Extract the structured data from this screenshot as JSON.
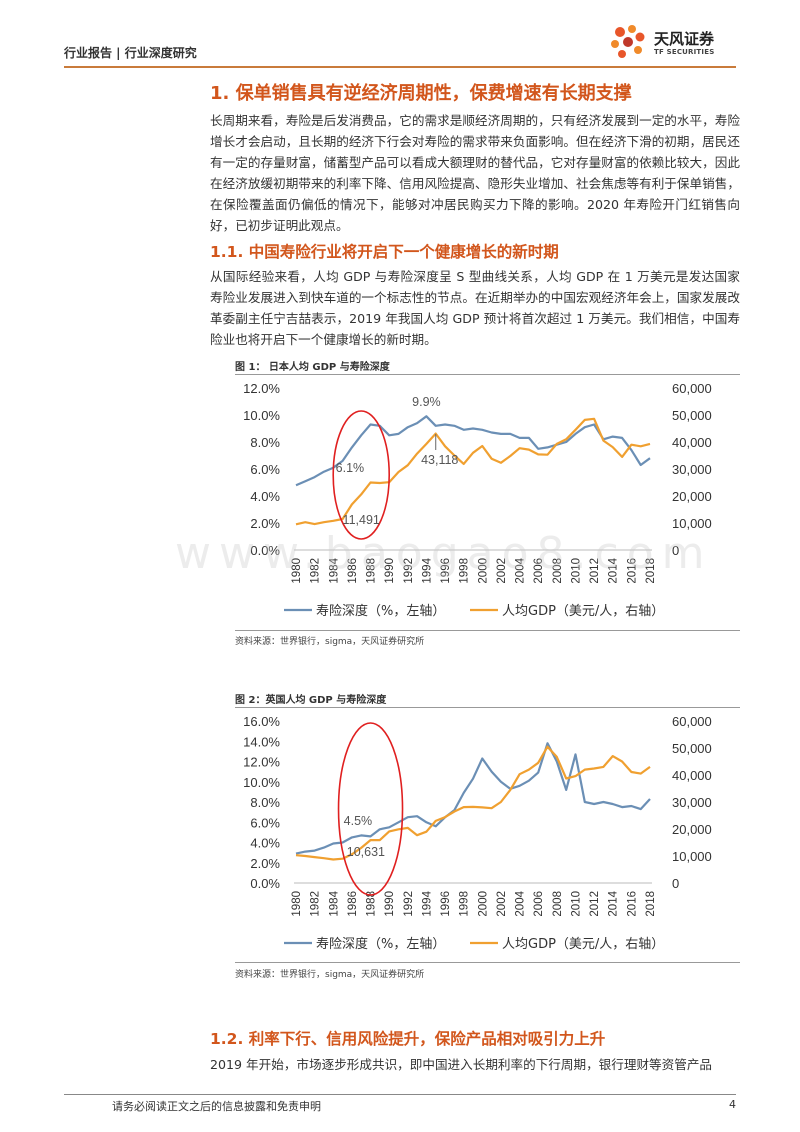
{
  "header": {
    "left_text": "行业报告 | 行业深度研究",
    "logo_name": "天风证券",
    "logo_sub": "TF SECURITIES"
  },
  "section1": {
    "title": "1. 保单销售具有逆经济周期性，保费增速有长期支撑",
    "para": "长周期来看，寿险是后发消费品，它的需求是顺经济周期的，只有经济发展到一定的水平，寿险增长才会启动，且长期的经济下行会对寿险的需求带来负面影响。但在经济下滑的初期，居民还有一定的存量财富，储蓄型产品可以看成大额理财的替代品，它对存量财富的依赖比较大，因此在经济放缓初期带来的利率下降、信用风险提高、隐形失业增加、社会焦虑等有利于保单销售，在保险覆盖面仍偏低的情况下，能够对冲居民购买力下降的影响。2020 年寿险开门红销售向好，已初步证明此观点。"
  },
  "section11": {
    "title": "1.1. 中国寿险行业将开启下一个健康增长的新时期",
    "para": "从国际经验来看，人均 GDP 与寿险深度呈 S 型曲线关系，人均 GDP 在 1 万美元是发达国家寿险业发展进入到快车道的一个标志性的节点。在近期举办的中国宏观经济年会上，国家发展改革委副主任宁吉喆表示，2019 年我国人均 GDP 预计将首次超过 1 万美元。我们相信，中国寿险业也将开启下一个健康增长的新时期。"
  },
  "figure1": {
    "title": "图 1： 日本人均 GDP 与寿险深度",
    "source": "资料来源：世界银行，sigma，天风证券研究所"
  },
  "figure2": {
    "title": "图 2：英国人均 GDP 与寿险深度",
    "source": "资料来源：世界银行，sigma，天风证券研究所"
  },
  "section12": {
    "title": "1.2. 利率下行、信用风险提升，保险产品相对吸引力上升",
    "para": "2019 年开始，市场逐步形成共识，即中国进入长期利率的下行周期，银行理财等资管产品"
  },
  "footer": {
    "disclaimer": "请务必阅读正文之后的信息披露和免责申明",
    "page": "4"
  },
  "colors": {
    "depth_line": "#6b8fb5",
    "gdp_line": "#f0a030",
    "highlight_circle": "#e02020",
    "heading": "#d2561c"
  },
  "chart_data": [
    {
      "type": "line",
      "x": [
        1980,
        1981,
        1982,
        1983,
        1984,
        1985,
        1986,
        1987,
        1988,
        1989,
        1990,
        1991,
        1992,
        1993,
        1994,
        1995,
        1996,
        1997,
        1998,
        1999,
        2000,
        2001,
        2002,
        2003,
        2004,
        2005,
        2006,
        2007,
        2008,
        2009,
        2010,
        2011,
        2012,
        2013,
        2014,
        2015,
        2016,
        2017,
        2018
      ],
      "x_tick_labels": [
        "1980",
        "1982",
        "1984",
        "1986",
        "1988",
        "1990",
        "1992",
        "1994",
        "1996",
        "1998",
        "2000",
        "2002",
        "2004",
        "2006",
        "2008",
        "2010",
        "2012",
        "2014",
        "2016",
        "2018"
      ],
      "y_left_ticks": [
        "0.0%",
        "2.0%",
        "4.0%",
        "6.0%",
        "8.0%",
        "10.0%",
        "12.0%"
      ],
      "y_right_ticks": [
        "0",
        "10,000",
        "20,000",
        "30,000",
        "40,000",
        "50,000",
        "60,000"
      ],
      "ylim_left": [
        0,
        12
      ],
      "ylim_right": [
        0,
        60000
      ],
      "series": [
        {
          "name": "寿险深度（%，左轴）",
          "axis": "left",
          "values": [
            4.8,
            5.1,
            5.4,
            5.8,
            6.1,
            6.6,
            7.6,
            8.5,
            9.3,
            9.2,
            8.5,
            8.6,
            9.1,
            9.4,
            9.9,
            9.2,
            9.3,
            9.2,
            8.9,
            9.0,
            8.9,
            8.7,
            8.6,
            8.6,
            8.3,
            8.3,
            7.5,
            7.6,
            7.8,
            8.0,
            8.6,
            9.1,
            9.3,
            8.2,
            8.4,
            8.3,
            7.4,
            6.3,
            6.8
          ]
        },
        {
          "name": "人均GDP（美元/人，右轴）",
          "axis": "right",
          "values": [
            9500,
            10300,
            9600,
            10300,
            10800,
            11491,
            16900,
            20600,
            25000,
            24800,
            25100,
            28900,
            31400,
            35700,
            39300,
            43118,
            38400,
            35000,
            31900,
            36000,
            38500,
            33800,
            32300,
            34800,
            37700,
            37200,
            35400,
            35300,
            39300,
            41000,
            44500,
            48200,
            48600,
            40500,
            38100,
            34500,
            39000,
            38400,
            39300
          ]
        }
      ],
      "annotations": [
        {
          "label": "9.9%",
          "x": 1994
        },
        {
          "label": "43,118",
          "x": 1995
        },
        {
          "label": "6.1%",
          "x": 1986
        },
        {
          "label": "11,491",
          "x": 1987
        }
      ]
    },
    {
      "type": "line",
      "x": [
        1980,
        1981,
        1982,
        1983,
        1984,
        1985,
        1986,
        1987,
        1988,
        1989,
        1990,
        1991,
        1992,
        1993,
        1994,
        1995,
        1996,
        1997,
        1998,
        1999,
        2000,
        2001,
        2002,
        2003,
        2004,
        2005,
        2006,
        2007,
        2008,
        2009,
        2010,
        2011,
        2012,
        2013,
        2014,
        2015,
        2016,
        2017,
        2018
      ],
      "x_tick_labels": [
        "1980",
        "1982",
        "1984",
        "1986",
        "1988",
        "1990",
        "1992",
        "1994",
        "1996",
        "1998",
        "2000",
        "2002",
        "2004",
        "2006",
        "2008",
        "2010",
        "2012",
        "2014",
        "2016",
        "2018"
      ],
      "y_left_ticks": [
        "0.0%",
        "2.0%",
        "4.0%",
        "6.0%",
        "8.0%",
        "10.0%",
        "12.0%",
        "14.0%",
        "16.0%"
      ],
      "y_right_ticks": [
        "0",
        "10,000",
        "20,000",
        "30,000",
        "40,000",
        "50,000",
        "60,000"
      ],
      "ylim_left": [
        0,
        16
      ],
      "ylim_right": [
        0,
        60000
      ],
      "series": [
        {
          "name": "寿险深度（%，左轴）",
          "axis": "left",
          "values": [
            2.9,
            3.1,
            3.2,
            3.5,
            3.9,
            4.0,
            4.5,
            4.7,
            4.6,
            5.3,
            5.5,
            6.0,
            6.5,
            6.6,
            6.0,
            5.6,
            6.5,
            7.2,
            8.9,
            10.3,
            12.3,
            11.0,
            10.0,
            9.3,
            9.6,
            10.1,
            10.9,
            13.8,
            12.0,
            9.2,
            12.7,
            8.0,
            7.8,
            8.0,
            7.8,
            7.5,
            7.6,
            7.3,
            8.3
          ]
        },
        {
          "name": "人均GDP（美元/人，右轴）",
          "axis": "right",
          "values": [
            10300,
            10000,
            9600,
            9200,
            8700,
            9000,
            10631,
            13000,
            15900,
            15900,
            19100,
            19900,
            20400,
            17700,
            19000,
            23000,
            24400,
            26500,
            28100,
            28200,
            28000,
            27700,
            30000,
            34500,
            40300,
            42000,
            44500,
            50500,
            46700,
            38700,
            39600,
            42000,
            42400,
            43000,
            47000,
            45000,
            41100,
            40500,
            43000
          ]
        }
      ],
      "annotations": [
        {
          "label": "4.5%",
          "x": 1986
        },
        {
          "label": "10,631",
          "x": 1986
        }
      ]
    }
  ]
}
